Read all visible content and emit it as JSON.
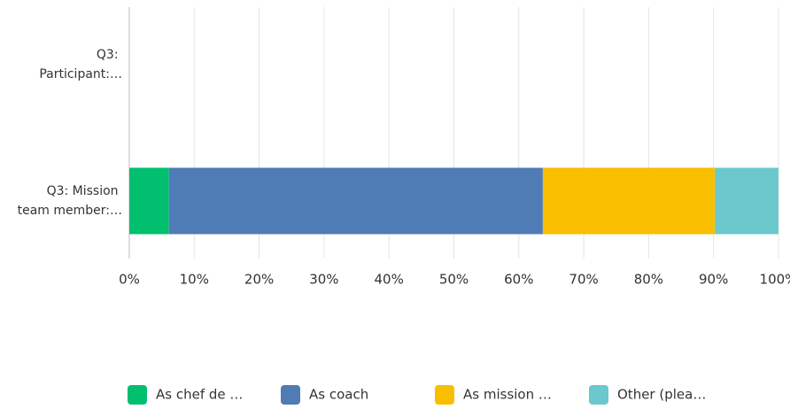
{
  "chart_data": {
    "type": "stacked-bar-horizontal",
    "categories": [
      "Q3: Participant:…",
      "Q3: Mission team member:…"
    ],
    "series": [
      {
        "name": "As chef de …",
        "color": "#00bf6f",
        "values": [
          0,
          6.1
        ]
      },
      {
        "name": "As coach",
        "color": "#507cb6",
        "values": [
          0,
          57.6
        ]
      },
      {
        "name": "As mission …",
        "color": "#f9be00",
        "values": [
          0,
          26.5
        ]
      },
      {
        "name": "Other (plea…",
        "color": "#6bc8cd",
        "values": [
          0,
          9.8
        ]
      }
    ],
    "xlim": [
      0,
      100
    ],
    "xticks": [
      {
        "value": 0,
        "label": "0%"
      },
      {
        "value": 10,
        "label": "10%"
      },
      {
        "value": 20,
        "label": "20%"
      },
      {
        "value": 30,
        "label": "30%"
      },
      {
        "value": 40,
        "label": "40%"
      },
      {
        "value": 50,
        "label": "50%"
      },
      {
        "value": 60,
        "label": "60%"
      },
      {
        "value": 70,
        "label": "70%"
      },
      {
        "value": 80,
        "label": "80%"
      },
      {
        "value": 90,
        "label": "90%"
      },
      {
        "value": 100,
        "label": "100%"
      }
    ],
    "grid": true,
    "legend": "bottom"
  }
}
